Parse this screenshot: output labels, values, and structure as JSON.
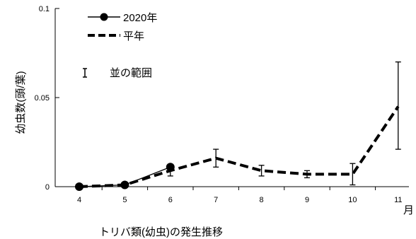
{
  "chart_data": {
    "type": "line",
    "title": "",
    "caption": "トリバ類(幼虫)の発生推移",
    "xlabel": "月",
    "ylabel": "幼虫数(頭/葉)",
    "categories": [
      "4",
      "5",
      "6",
      "7",
      "8",
      "9",
      "10",
      "11"
    ],
    "ylim": [
      0,
      0.1
    ],
    "y_ticks": [
      "0",
      "0.05",
      "0.1"
    ],
    "grid": false,
    "series": [
      {
        "name": "2020年",
        "style": "solid-with-markers",
        "color": "#000000",
        "values": [
          0,
          0.001,
          0.011,
          null,
          null,
          null,
          null,
          null
        ]
      },
      {
        "name": "平年",
        "style": "dashed",
        "color": "#000000",
        "values": [
          0,
          0.001,
          0.009,
          0.016,
          0.009,
          0.007,
          0.007,
          0.045
        ],
        "error_low": [
          null,
          null,
          0.006,
          0.011,
          0.006,
          0.005,
          0.001,
          0.021
        ],
        "error_high": [
          null,
          null,
          0.012,
          0.021,
          0.012,
          0.009,
          0.013,
          0.07
        ]
      }
    ],
    "legend": {
      "placement": "top-left",
      "error_bar_label": "並の範囲"
    }
  }
}
